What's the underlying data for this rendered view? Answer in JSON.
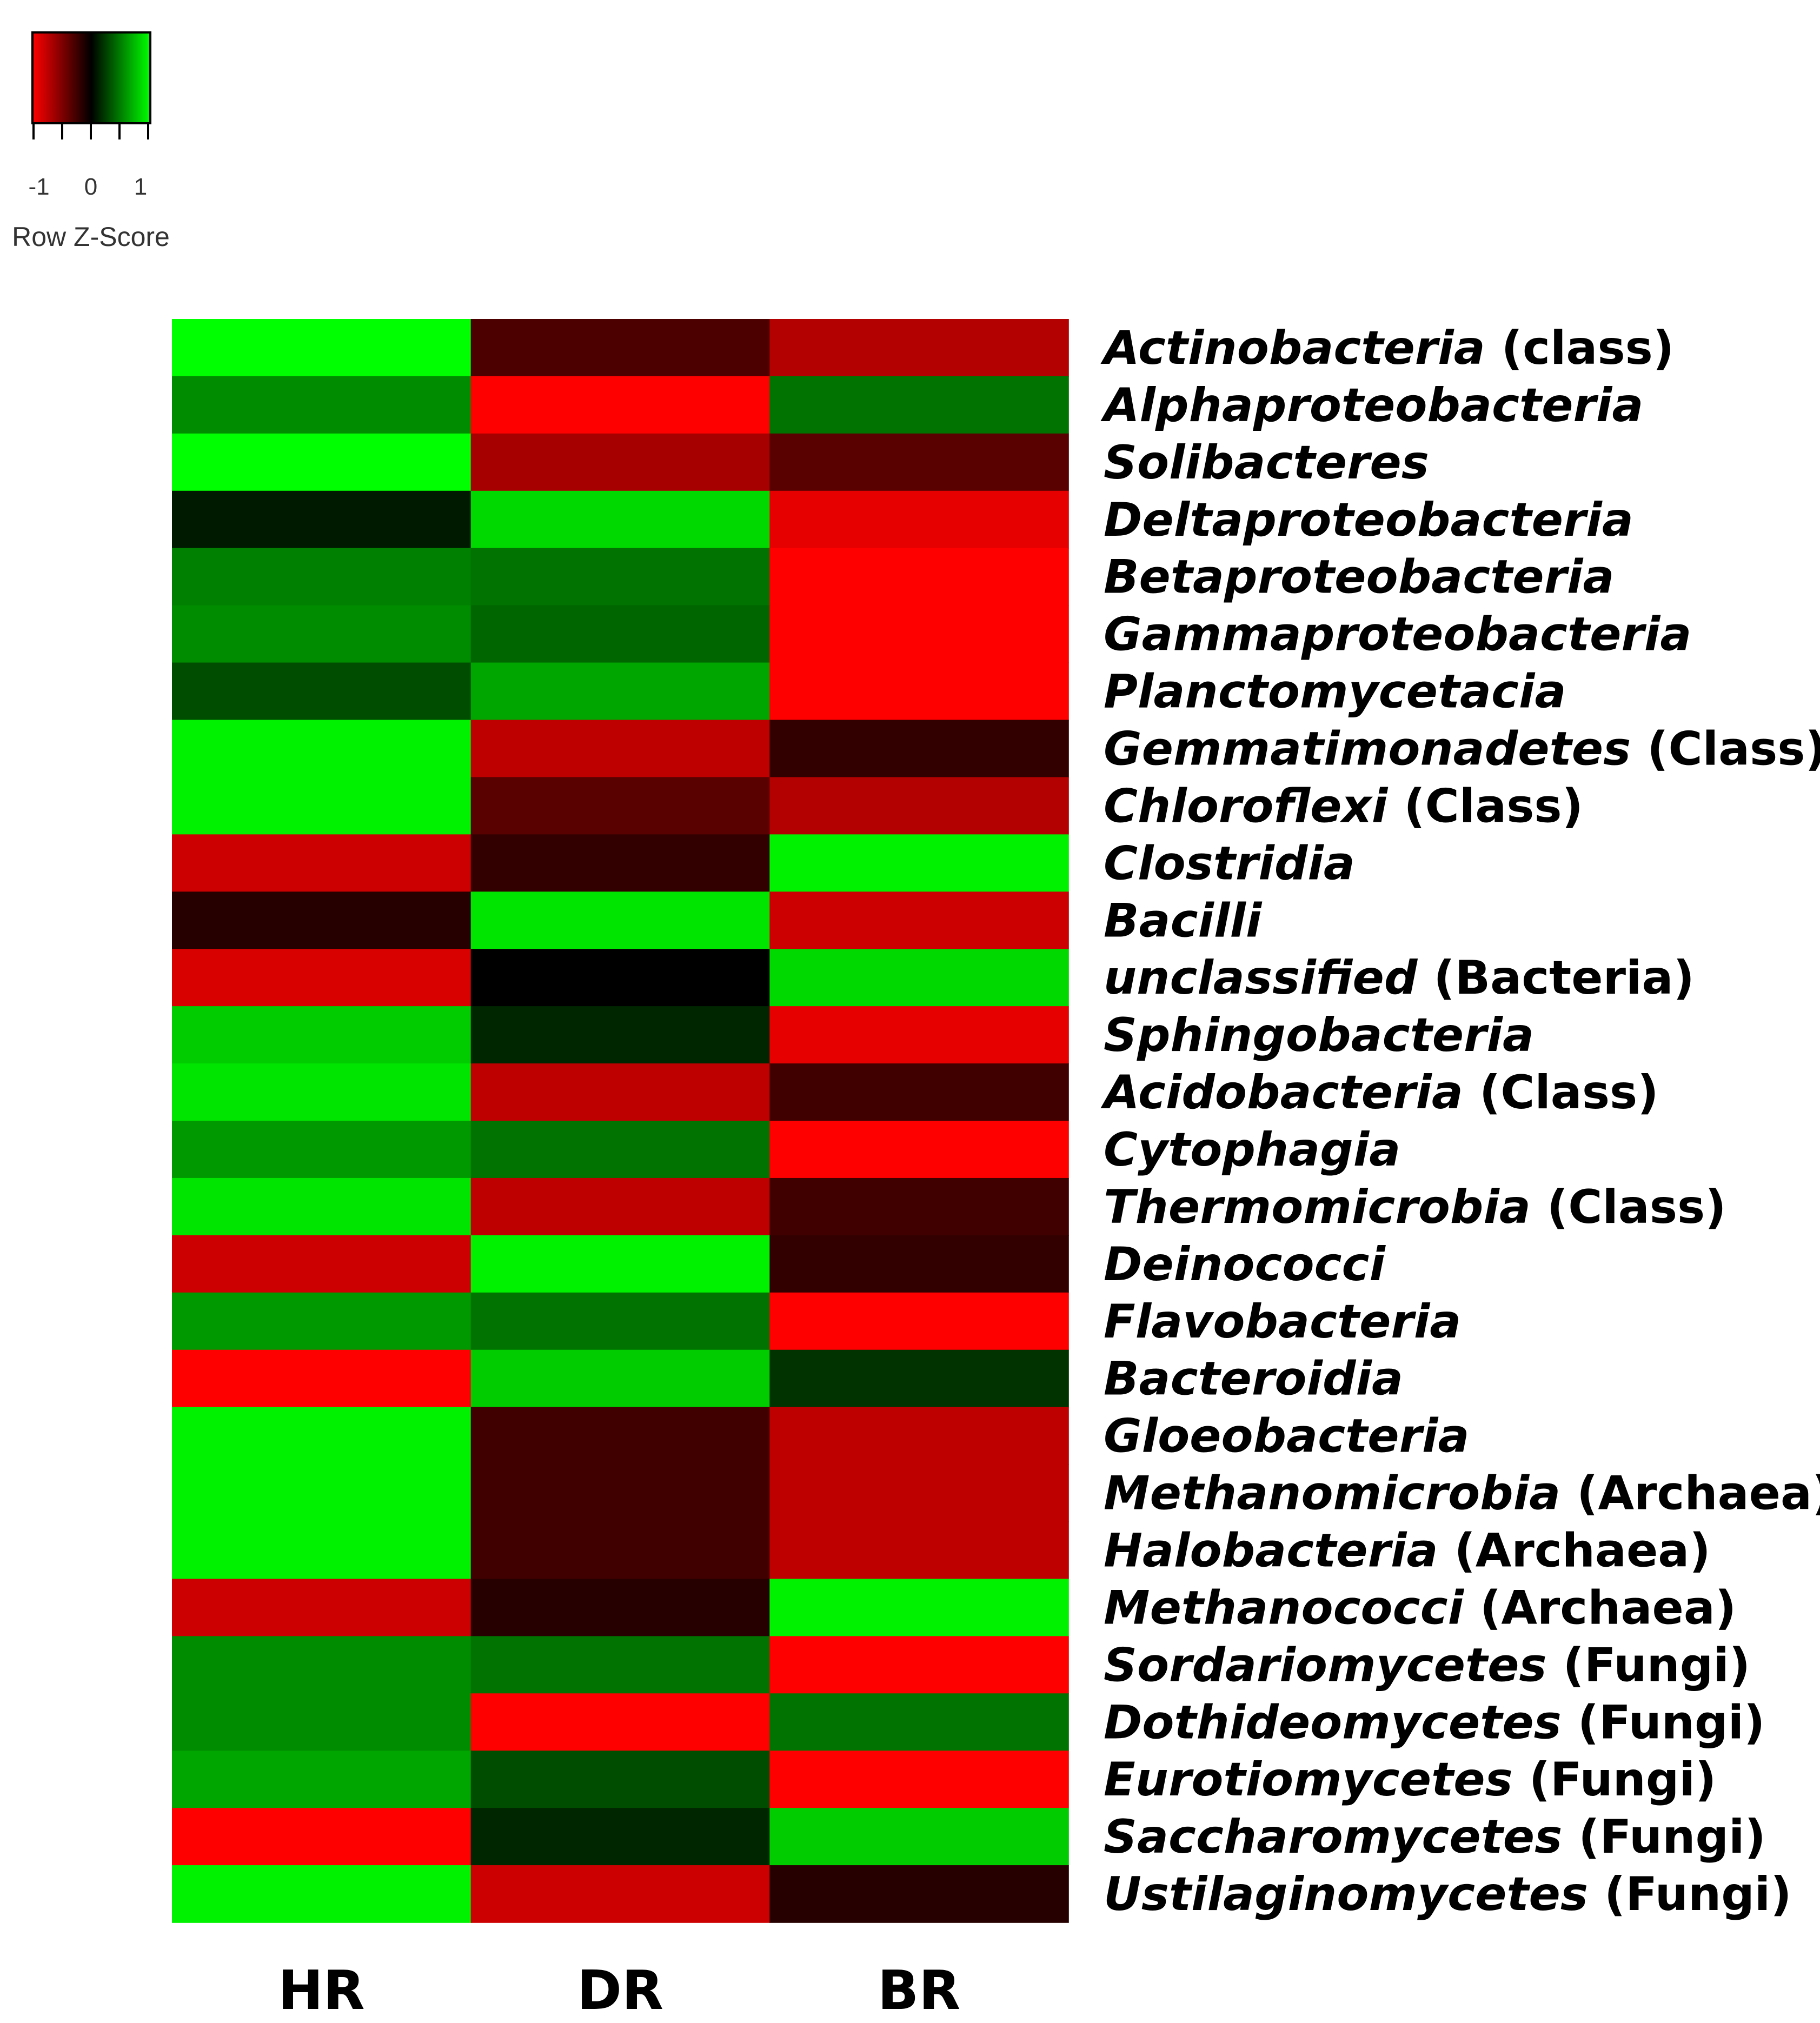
{
  "chart_data": {
    "type": "heatmap",
    "columns": [
      "HR",
      "DR",
      "BR"
    ],
    "rows": [
      {
        "name": "Actinobacteria",
        "suffix": "(class)",
        "values": [
          1.0,
          -0.3,
          -0.7
        ]
      },
      {
        "name": "Alphaproteobacteria",
        "suffix": "",
        "values": [
          0.55,
          -1.0,
          0.45
        ]
      },
      {
        "name": "Solibacteres",
        "suffix": "",
        "values": [
          1.0,
          -0.65,
          -0.35
        ]
      },
      {
        "name": "Deltaproteobacteria",
        "suffix": "",
        "values": [
          0.1,
          0.85,
          -0.9
        ]
      },
      {
        "name": "Betaproteobacteria",
        "suffix": "",
        "values": [
          0.5,
          0.45,
          -1.0
        ]
      },
      {
        "name": "Gammaproteobacteria",
        "suffix": "",
        "values": [
          0.55,
          0.4,
          -1.0
        ]
      },
      {
        "name": "Planctomycetacia",
        "suffix": "",
        "values": [
          0.3,
          0.65,
          -1.0
        ]
      },
      {
        "name": "Gemmatimonadetes",
        "suffix": "(Class)",
        "values": [
          0.95,
          -0.75,
          -0.2
        ]
      },
      {
        "name": "Chloroflexi",
        "suffix": "(Class)",
        "values": [
          0.95,
          -0.35,
          -0.7
        ]
      },
      {
        "name": "Clostridia",
        "suffix": "",
        "values": [
          -0.8,
          -0.2,
          0.95
        ]
      },
      {
        "name": "Bacilli",
        "suffix": "",
        "values": [
          -0.15,
          0.9,
          -0.8
        ]
      },
      {
        "name": "unclassified",
        "suffix": "(Bacteria)",
        "values": [
          -0.85,
          0.0,
          0.85
        ]
      },
      {
        "name": "Sphingobacteria",
        "suffix": "",
        "values": [
          0.8,
          0.15,
          -0.9
        ]
      },
      {
        "name": "Acidobacteria",
        "suffix": "(Class)",
        "values": [
          0.9,
          -0.75,
          -0.25
        ]
      },
      {
        "name": "Cytophagia",
        "suffix": "",
        "values": [
          0.6,
          0.45,
          -1.0
        ]
      },
      {
        "name": "Thermomicrobia",
        "suffix": "(Class)",
        "values": [
          0.9,
          -0.75,
          -0.25
        ]
      },
      {
        "name": "Deinococci",
        "suffix": "",
        "values": [
          -0.8,
          0.95,
          -0.2
        ]
      },
      {
        "name": "Flavobacteria",
        "suffix": "",
        "values": [
          0.6,
          0.45,
          -1.0
        ]
      },
      {
        "name": "Bacteroidia",
        "suffix": "",
        "values": [
          -1.0,
          0.8,
          0.2
        ]
      },
      {
        "name": "Gloeobacteria",
        "suffix": "",
        "values": [
          0.95,
          -0.25,
          -0.75
        ]
      },
      {
        "name": "Methanomicrobia",
        "suffix": "(Archaea)",
        "values": [
          0.95,
          -0.25,
          -0.75
        ]
      },
      {
        "name": "Halobacteria",
        "suffix": "(Archaea)",
        "values": [
          0.95,
          -0.25,
          -0.75
        ]
      },
      {
        "name": "Methanococci",
        "suffix": "(Archaea)",
        "values": [
          -0.8,
          -0.15,
          0.95
        ]
      },
      {
        "name": "Sordariomycetes",
        "suffix": "(Fungi)",
        "values": [
          0.55,
          0.45,
          -1.0
        ]
      },
      {
        "name": "Dothideomycetes",
        "suffix": "(Fungi)",
        "values": [
          0.55,
          -1.0,
          0.45
        ]
      },
      {
        "name": "Eurotiomycetes",
        "suffix": "(Fungi)",
        "values": [
          0.65,
          0.3,
          -1.0
        ]
      },
      {
        "name": "Saccharomycetes",
        "suffix": "(Fungi)",
        "values": [
          -1.0,
          0.15,
          0.8
        ]
      },
      {
        "name": "Ustilaginomycetes",
        "suffix": "(Fungi)",
        "values": [
          0.95,
          -0.8,
          -0.15
        ]
      }
    ],
    "color_scale": {
      "low": "#ff0000",
      "mid": "#000000",
      "high": "#00ff00",
      "range": [
        -1,
        1
      ]
    },
    "legend": {
      "title": "Row Z-Score",
      "ticks": [
        "-1",
        "0",
        "1"
      ],
      "placement": "top-left"
    }
  }
}
